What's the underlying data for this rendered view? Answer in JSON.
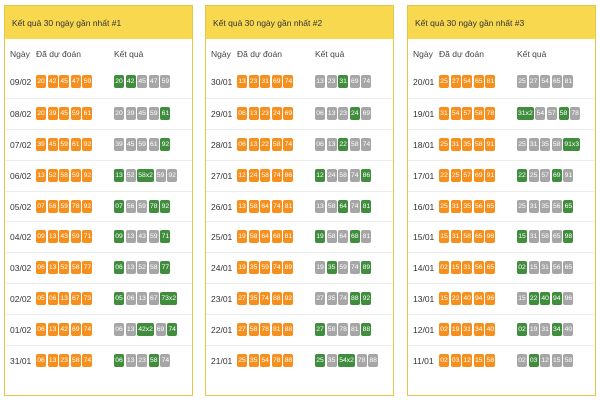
{
  "colors": {
    "header": "#f8d84e",
    "border": "#e4c64a",
    "predicted": "#f5901e",
    "miss": "#a6a6a6",
    "hit": "#3f8d3d"
  },
  "columns": {
    "day": "Ngày",
    "predicted": "Đã dự đoán",
    "result": "Kết quả"
  },
  "panels": [
    {
      "title": "Kết quả 30 ngày gần nhất #1",
      "rows": [
        {
          "date": "09/02",
          "predicted": [
            "20",
            "42",
            "45",
            "47",
            "59"
          ],
          "result": [
            [
              "20",
              "k"
            ],
            [
              "42",
              "k"
            ],
            [
              "45",
              "g"
            ],
            [
              "47",
              "g"
            ],
            [
              "59",
              "g"
            ]
          ]
        },
        {
          "date": "08/02",
          "predicted": [
            "20",
            "39",
            "45",
            "59",
            "61"
          ],
          "result": [
            [
              "20",
              "g"
            ],
            [
              "39",
              "g"
            ],
            [
              "45",
              "g"
            ],
            [
              "59",
              "g"
            ],
            [
              "61",
              "k"
            ]
          ]
        },
        {
          "date": "07/02",
          "predicted": [
            "39",
            "45",
            "59",
            "61",
            "92"
          ],
          "result": [
            [
              "39",
              "g"
            ],
            [
              "45",
              "g"
            ],
            [
              "59",
              "g"
            ],
            [
              "61",
              "g"
            ],
            [
              "92",
              "k"
            ]
          ]
        },
        {
          "date": "06/02",
          "predicted": [
            "13",
            "52",
            "58",
            "59",
            "92"
          ],
          "result": [
            [
              "13",
              "k"
            ],
            [
              "52",
              "g"
            ],
            [
              "58x2",
              "k"
            ],
            [
              "59",
              "g"
            ],
            [
              "92",
              "g"
            ]
          ]
        },
        {
          "date": "05/02",
          "predicted": [
            "07",
            "56",
            "59",
            "78",
            "92"
          ],
          "result": [
            [
              "07",
              "k"
            ],
            [
              "56",
              "g"
            ],
            [
              "59",
              "g"
            ],
            [
              "78",
              "k"
            ],
            [
              "92",
              "k"
            ]
          ]
        },
        {
          "date": "04/02",
          "predicted": [
            "09",
            "13",
            "43",
            "59",
            "71"
          ],
          "result": [
            [
              "09",
              "k"
            ],
            [
              "13",
              "g"
            ],
            [
              "43",
              "g"
            ],
            [
              "59",
              "g"
            ],
            [
              "71",
              "k"
            ]
          ]
        },
        {
          "date": "03/02",
          "predicted": [
            "06",
            "13",
            "52",
            "58",
            "77"
          ],
          "result": [
            [
              "06",
              "k"
            ],
            [
              "13",
              "g"
            ],
            [
              "52",
              "g"
            ],
            [
              "58",
              "g"
            ],
            [
              "77",
              "k"
            ]
          ]
        },
        {
          "date": "02/02",
          "predicted": [
            "05",
            "06",
            "13",
            "67",
            "73"
          ],
          "result": [
            [
              "05",
              "k"
            ],
            [
              "06",
              "g"
            ],
            [
              "13",
              "g"
            ],
            [
              "67",
              "g"
            ],
            [
              "73x2",
              "k"
            ]
          ]
        },
        {
          "date": "01/02",
          "predicted": [
            "06",
            "13",
            "42",
            "69",
            "74"
          ],
          "result": [
            [
              "06",
              "g"
            ],
            [
              "13",
              "g"
            ],
            [
              "42x2",
              "k"
            ],
            [
              "69",
              "g"
            ],
            [
              "74",
              "k"
            ]
          ]
        },
        {
          "date": "31/01",
          "predicted": [
            "06",
            "13",
            "23",
            "58",
            "74"
          ],
          "result": [
            [
              "06",
              "k"
            ],
            [
              "13",
              "g"
            ],
            [
              "23",
              "g"
            ],
            [
              "58",
              "k"
            ],
            [
              "74",
              "g"
            ]
          ]
        }
      ]
    },
    {
      "title": "Kết quả 30 ngày gần nhất #2",
      "rows": [
        {
          "date": "30/01",
          "predicted": [
            "13",
            "23",
            "31",
            "69",
            "74"
          ],
          "result": [
            [
              "13",
              "g"
            ],
            [
              "23",
              "g"
            ],
            [
              "31",
              "k"
            ],
            [
              "69",
              "g"
            ],
            [
              "74",
              "g"
            ]
          ]
        },
        {
          "date": "29/01",
          "predicted": [
            "06",
            "13",
            "23",
            "24",
            "69"
          ],
          "result": [
            [
              "06",
              "g"
            ],
            [
              "13",
              "g"
            ],
            [
              "23",
              "g"
            ],
            [
              "24",
              "k"
            ],
            [
              "69",
              "g"
            ]
          ]
        },
        {
          "date": "28/01",
          "predicted": [
            "06",
            "13",
            "22",
            "58",
            "74"
          ],
          "result": [
            [
              "06",
              "g"
            ],
            [
              "13",
              "g"
            ],
            [
              "22",
              "k"
            ],
            [
              "58",
              "g"
            ],
            [
              "74",
              "g"
            ]
          ]
        },
        {
          "date": "27/01",
          "predicted": [
            "12",
            "24",
            "58",
            "74",
            "86"
          ],
          "result": [
            [
              "12",
              "k"
            ],
            [
              "24",
              "g"
            ],
            [
              "58",
              "g"
            ],
            [
              "74",
              "g"
            ],
            [
              "86",
              "k"
            ]
          ]
        },
        {
          "date": "26/01",
          "predicted": [
            "13",
            "58",
            "64",
            "74",
            "81"
          ],
          "result": [
            [
              "13",
              "g"
            ],
            [
              "58",
              "g"
            ],
            [
              "64",
              "k"
            ],
            [
              "74",
              "g"
            ],
            [
              "81",
              "k"
            ]
          ]
        },
        {
          "date": "25/01",
          "predicted": [
            "19",
            "58",
            "64",
            "68",
            "81"
          ],
          "result": [
            [
              "19",
              "k"
            ],
            [
              "58",
              "g"
            ],
            [
              "64",
              "g"
            ],
            [
              "68",
              "k"
            ],
            [
              "81",
              "g"
            ]
          ]
        },
        {
          "date": "24/01",
          "predicted": [
            "19",
            "35",
            "59",
            "74",
            "89"
          ],
          "result": [
            [
              "19",
              "g"
            ],
            [
              "35",
              "k"
            ],
            [
              "59",
              "g"
            ],
            [
              "74",
              "g"
            ],
            [
              "89",
              "k"
            ]
          ]
        },
        {
          "date": "23/01",
          "predicted": [
            "27",
            "35",
            "74",
            "88",
            "92"
          ],
          "result": [
            [
              "27",
              "g"
            ],
            [
              "35",
              "g"
            ],
            [
              "74",
              "g"
            ],
            [
              "88",
              "k"
            ],
            [
              "92",
              "k"
            ]
          ]
        },
        {
          "date": "22/01",
          "predicted": [
            "27",
            "58",
            "78",
            "81",
            "88"
          ],
          "result": [
            [
              "27",
              "k"
            ],
            [
              "58",
              "g"
            ],
            [
              "78",
              "g"
            ],
            [
              "81",
              "g"
            ],
            [
              "88",
              "k"
            ]
          ]
        },
        {
          "date": "21/01",
          "predicted": [
            "25",
            "35",
            "54",
            "78",
            "88"
          ],
          "result": [
            [
              "25",
              "k"
            ],
            [
              "35",
              "g"
            ],
            [
              "54x2",
              "k"
            ],
            [
              "78",
              "g"
            ],
            [
              "88",
              "g"
            ]
          ]
        }
      ]
    },
    {
      "title": "Kết quả 30 ngày gần nhất #3",
      "rows": [
        {
          "date": "20/01",
          "predicted": [
            "25",
            "27",
            "54",
            "65",
            "81"
          ],
          "result": [
            [
              "25",
              "g"
            ],
            [
              "27",
              "g"
            ],
            [
              "54",
              "g"
            ],
            [
              "65",
              "g"
            ],
            [
              "81",
              "g"
            ]
          ]
        },
        {
          "date": "19/01",
          "predicted": [
            "31",
            "54",
            "57",
            "58",
            "78"
          ],
          "result": [
            [
              "31x2",
              "k"
            ],
            [
              "54",
              "g"
            ],
            [
              "57",
              "g"
            ],
            [
              "58",
              "k"
            ],
            [
              "78",
              "g"
            ]
          ]
        },
        {
          "date": "18/01",
          "predicted": [
            "25",
            "31",
            "35",
            "58",
            "91"
          ],
          "result": [
            [
              "25",
              "g"
            ],
            [
              "31",
              "g"
            ],
            [
              "35",
              "g"
            ],
            [
              "58",
              "g"
            ],
            [
              "91x3",
              "k"
            ]
          ]
        },
        {
          "date": "17/01",
          "predicted": [
            "22",
            "25",
            "57",
            "69",
            "91"
          ],
          "result": [
            [
              "22",
              "k"
            ],
            [
              "25",
              "g"
            ],
            [
              "57",
              "g"
            ],
            [
              "69",
              "k"
            ],
            [
              "91",
              "g"
            ]
          ]
        },
        {
          "date": "16/01",
          "predicted": [
            "25",
            "31",
            "35",
            "56",
            "65"
          ],
          "result": [
            [
              "25",
              "g"
            ],
            [
              "31",
              "g"
            ],
            [
              "35",
              "g"
            ],
            [
              "56",
              "g"
            ],
            [
              "65",
              "k"
            ]
          ]
        },
        {
          "date": "15/01",
          "predicted": [
            "15",
            "31",
            "58",
            "65",
            "98"
          ],
          "result": [
            [
              "15",
              "k"
            ],
            [
              "31",
              "g"
            ],
            [
              "58",
              "g"
            ],
            [
              "65",
              "g"
            ],
            [
              "98",
              "k"
            ]
          ]
        },
        {
          "date": "14/01",
          "predicted": [
            "02",
            "15",
            "31",
            "56",
            "65"
          ],
          "result": [
            [
              "02",
              "k"
            ],
            [
              "15",
              "g"
            ],
            [
              "31",
              "g"
            ],
            [
              "56",
              "g"
            ],
            [
              "65",
              "g"
            ]
          ]
        },
        {
          "date": "13/01",
          "predicted": [
            "15",
            "22",
            "40",
            "94",
            "96"
          ],
          "result": [
            [
              "15",
              "g"
            ],
            [
              "22",
              "k"
            ],
            [
              "40",
              "k"
            ],
            [
              "94",
              "k"
            ],
            [
              "96",
              "g"
            ]
          ]
        },
        {
          "date": "12/01",
          "predicted": [
            "02",
            "19",
            "31",
            "34",
            "40"
          ],
          "result": [
            [
              "02",
              "k"
            ],
            [
              "19",
              "g"
            ],
            [
              "31",
              "g"
            ],
            [
              "34",
              "k"
            ],
            [
              "40",
              "g"
            ]
          ]
        },
        {
          "date": "11/01",
          "predicted": [
            "02",
            "03",
            "12",
            "15",
            "58"
          ],
          "result": [
            [
              "02",
              "g"
            ],
            [
              "03",
              "k"
            ],
            [
              "12",
              "g"
            ],
            [
              "15",
              "g"
            ],
            [
              "58",
              "g"
            ]
          ]
        }
      ]
    }
  ]
}
